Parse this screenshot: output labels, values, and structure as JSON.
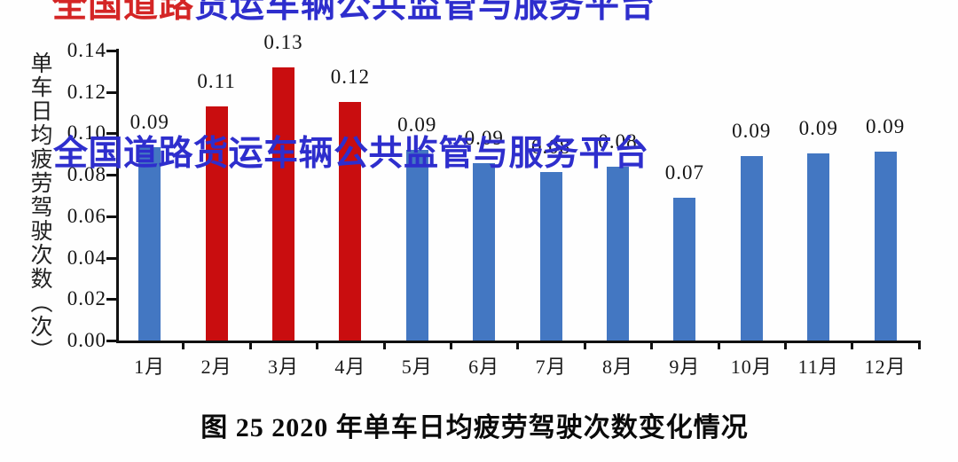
{
  "watermark": {
    "top": {
      "red_part": "全国道路",
      "blue_part": "货运车辆公共监管与服务平台",
      "red_color": "#d42525",
      "blue_color": "#2e2ecd"
    },
    "middle": {
      "text": "全国道路货运车辆公共监管与服务平台",
      "color": "#2e2ecd"
    }
  },
  "chart": {
    "ylabel": "单车日均疲劳驾驶次数（次）",
    "caption": "图 25  2020 年单车日均疲劳驾驶次数变化情况"
  },
  "chart_data": {
    "type": "bar",
    "title": "图 25 2020 年单车日均疲劳驾驶次数变化情况",
    "xlabel": "",
    "ylabel": "单车日均疲劳驾驶次数（次）",
    "categories": [
      "1月",
      "2月",
      "3月",
      "4月",
      "5月",
      "6月",
      "7月",
      "8月",
      "9月",
      "10月",
      "11月",
      "12月"
    ],
    "values": [
      0.09,
      0.11,
      0.13,
      0.12,
      0.09,
      0.09,
      0.08,
      0.08,
      0.07,
      0.09,
      0.09,
      0.09
    ],
    "data_labels": [
      "0.09",
      "0.11",
      "0.13",
      "0.12",
      "0.09",
      "0.09",
      "0.08",
      "0.08",
      "0.07",
      "0.09",
      "0.09",
      "0.09"
    ],
    "render_values": [
      0.0935,
      0.113,
      0.132,
      0.115,
      0.092,
      0.0855,
      0.0815,
      0.084,
      0.069,
      0.089,
      0.0905,
      0.091
    ],
    "bar_colors_by_month": [
      "blue",
      "red",
      "red",
      "red",
      "blue",
      "blue",
      "blue",
      "blue",
      "blue",
      "blue",
      "blue",
      "blue"
    ],
    "colors": {
      "blue": "#4377c2",
      "red": "#c90d0f",
      "axis": "#111111"
    },
    "ylim": [
      0,
      0.14
    ],
    "ytick_step": 0.02,
    "yticks": [
      "0.00",
      "0.02",
      "0.04",
      "0.06",
      "0.08",
      "0.10",
      "0.12",
      "0.14"
    ],
    "grid": false,
    "legend": false,
    "data_labels_shown": true
  }
}
